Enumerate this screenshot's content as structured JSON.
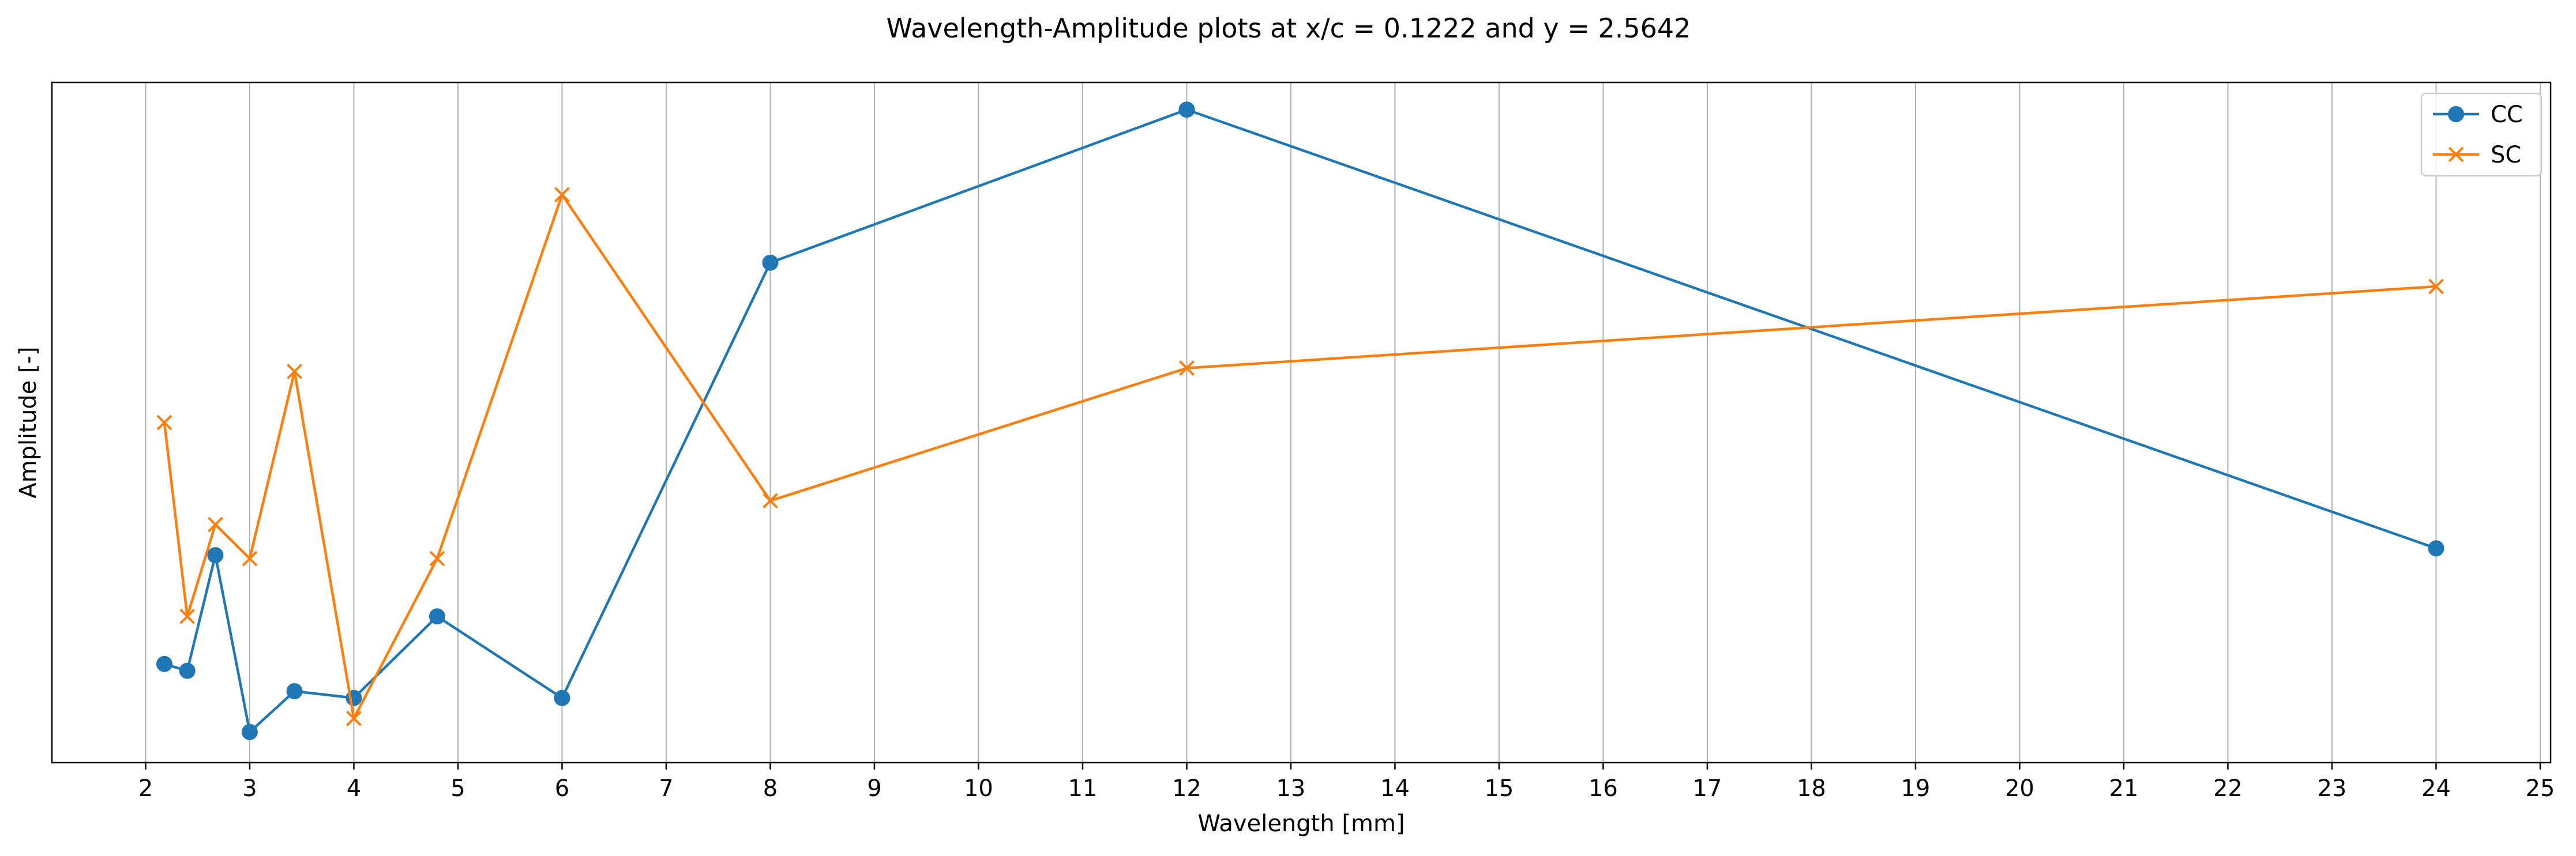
{
  "chart_data": {
    "type": "line",
    "title": "Wavelength-Amplitude plots at x/c = 0.1222 and y = 2.5642",
    "xlabel": "Wavelength [mm]",
    "ylabel": "Amplitude [-]",
    "xlim": [
      1.1,
      25.1
    ],
    "ylim": [
      0,
      1
    ],
    "x_ticks": [
      2,
      3,
      4,
      5,
      6,
      7,
      8,
      9,
      10,
      11,
      12,
      13,
      14,
      15,
      16,
      17,
      18,
      19,
      20,
      21,
      22,
      23,
      24,
      25
    ],
    "y_ticks_visible": false,
    "grid": "vertical",
    "legend": "top-right",
    "series": [
      {
        "name": "CC",
        "color": "#1f77b4",
        "marker": "circle",
        "x": [
          2.18,
          2.4,
          2.67,
          3.0,
          3.43,
          4.0,
          4.8,
          6.0,
          8.0,
          12.0,
          24.0
        ],
        "y": [
          0.145,
          0.135,
          0.305,
          0.045,
          0.105,
          0.095,
          0.215,
          0.095,
          0.735,
          0.96,
          0.315
        ]
      },
      {
        "name": "SC",
        "color": "#ff7f0e",
        "marker": "x",
        "x": [
          2.18,
          2.4,
          2.67,
          3.0,
          3.43,
          4.0,
          4.8,
          6.0,
          8.0,
          12.0,
          24.0
        ],
        "y": [
          0.5,
          0.215,
          0.35,
          0.3,
          0.575,
          0.065,
          0.3,
          0.835,
          0.385,
          0.58,
          0.7
        ]
      }
    ]
  }
}
